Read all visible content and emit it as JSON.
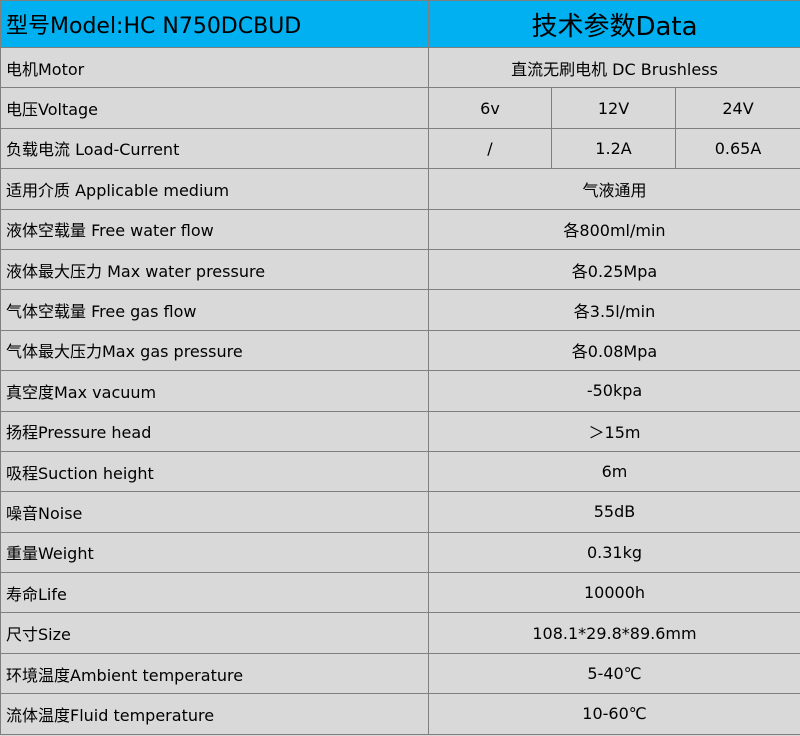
{
  "header": {
    "model": "型号Model:HC N750DCBUD",
    "title": "技术参数Data"
  },
  "table": {
    "rows": [
      {
        "label": "电机Motor",
        "values": [
          "直流无刷电机 DC Brushless"
        ]
      },
      {
        "label": "电压Voltage",
        "values": [
          "6v",
          "12V",
          "24V"
        ]
      },
      {
        "label": "负载电流 Load-Current",
        "values": [
          "/",
          "1.2A",
          "0.65A"
        ]
      },
      {
        "label": "适用介质 Applicable medium",
        "values": [
          "气液通用"
        ]
      },
      {
        "label": "液体空载量 Free water flow",
        "values": [
          "各800ml/min"
        ]
      },
      {
        "label": "液体最大压力 Max water pressure",
        "values": [
          "各0.25Mpa"
        ]
      },
      {
        "label": "气体空载量 Free gas flow",
        "values": [
          "各3.5l/min"
        ]
      },
      {
        "label": "气体最大压力Max gas pressure",
        "values": [
          "各0.08Mpa"
        ]
      },
      {
        "label": "真空度Max vacuum",
        "values": [
          "-50kpa"
        ]
      },
      {
        "label": "扬程Pressure head",
        "values": [
          "＞15m"
        ]
      },
      {
        "label": "吸程Suction height",
        "values": [
          "6m"
        ]
      },
      {
        "label": "噪音Noise",
        "values": [
          "55dB"
        ]
      },
      {
        "label": "重量Weight",
        "values": [
          "0.31kg"
        ]
      },
      {
        "label": "寿命Life",
        "values": [
          "10000h"
        ]
      },
      {
        "label": "尺寸Size",
        "values": [
          "108.1*29.8*89.6mm"
        ]
      },
      {
        "label": "环境温度Ambient temperature",
        "values": [
          "5-40℃"
        ]
      },
      {
        "label": "流体温度Fluid temperature",
        "values": [
          "10-60℃"
        ]
      }
    ]
  }
}
